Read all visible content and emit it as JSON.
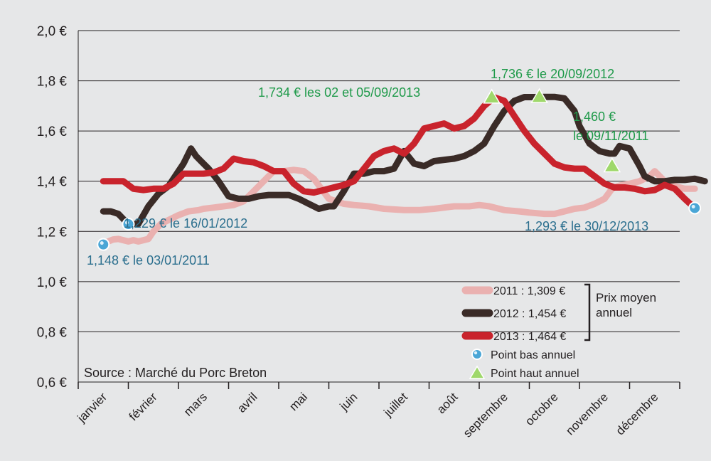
{
  "chart_data": {
    "type": "line",
    "ylim": [
      0.6,
      2.0
    ],
    "y_ticks": [
      "0,6 €",
      "0,8 €",
      "1,0 €",
      "1,2 €",
      "1,4 €",
      "1,6 €",
      "1,8 €",
      "2,0 €"
    ],
    "y_tick_values": [
      0.6,
      0.8,
      1.0,
      1.2,
      1.4,
      1.6,
      1.8,
      2.0
    ],
    "categories": [
      "janvier",
      "février",
      "mars",
      "avril",
      "mai",
      "juin",
      "juillet",
      "août",
      "septembre",
      "octobre",
      "novembre",
      "décembre"
    ],
    "grid": true,
    "source": "Source : Marché du Porc Breton",
    "series": [
      {
        "name": "2011 : 1,309 €",
        "color": "#eab1b0",
        "x": [
          0,
          0.1,
          0.2,
          0.3,
          0.4,
          0.5,
          0.6,
          0.7,
          0.8,
          0.9,
          1.0,
          1.15,
          1.3,
          1.5,
          1.7,
          1.9,
          2.0,
          2.2,
          2.4,
          2.6,
          2.8,
          3.0,
          3.2,
          3.4,
          3.6,
          3.8,
          4.0,
          4.2,
          4.5,
          4.8,
          5.0,
          5.3,
          5.6,
          6.0,
          6.3,
          6.6,
          7.0,
          7.3,
          7.5,
          7.7,
          8.0,
          8.3,
          8.5,
          8.8,
          9.0,
          9.2,
          9.4,
          9.6,
          9.8,
          10.0,
          10.15,
          10.25,
          10.35,
          10.5,
          10.7,
          10.9,
          11.0,
          11.2,
          11.4,
          11.6,
          11.8
        ],
        "values": [
          1.148,
          1.16,
          1.168,
          1.17,
          1.165,
          1.16,
          1.165,
          1.16,
          1.165,
          1.17,
          1.2,
          1.23,
          1.245,
          1.265,
          1.28,
          1.285,
          1.29,
          1.295,
          1.3,
          1.305,
          1.32,
          1.36,
          1.4,
          1.44,
          1.44,
          1.445,
          1.44,
          1.41,
          1.33,
          1.31,
          1.305,
          1.3,
          1.29,
          1.285,
          1.285,
          1.29,
          1.3,
          1.3,
          1.305,
          1.3,
          1.285,
          1.28,
          1.275,
          1.27,
          1.27,
          1.28,
          1.29,
          1.295,
          1.31,
          1.33,
          1.37,
          1.38,
          1.385,
          1.39,
          1.4,
          1.42,
          1.44,
          1.4,
          1.38,
          1.37,
          1.37
        ]
      },
      {
        "name": "2012 : 1,454 €",
        "color": "#3a2b27",
        "x": [
          0,
          0.15,
          0.3,
          0.5,
          0.7,
          0.9,
          1.1,
          1.3,
          1.5,
          1.6,
          1.75,
          1.85,
          1.95,
          2.1,
          2.3,
          2.5,
          2.7,
          2.9,
          3.1,
          3.3,
          3.5,
          3.7,
          3.9,
          4.1,
          4.3,
          4.4,
          4.5,
          4.6,
          4.8,
          5.0,
          5.2,
          5.4,
          5.6,
          5.8,
          6.0,
          6.2,
          6.4,
          6.6,
          6.8,
          7.0,
          7.2,
          7.4,
          7.6,
          7.8,
          8.0,
          8.2,
          8.4,
          8.6,
          8.8,
          9.0,
          9.2,
          9.4,
          9.5,
          9.7,
          9.9,
          10.1,
          10.2,
          10.3,
          10.5,
          10.7,
          10.8,
          11.0,
          11.2,
          11.4,
          11.6,
          11.8,
          12.0
        ],
        "values": [
          1.28,
          1.28,
          1.27,
          1.229,
          1.23,
          1.3,
          1.35,
          1.38,
          1.44,
          1.47,
          1.53,
          1.5,
          1.48,
          1.45,
          1.4,
          1.34,
          1.33,
          1.33,
          1.34,
          1.345,
          1.345,
          1.345,
          1.33,
          1.31,
          1.29,
          1.295,
          1.3,
          1.3,
          1.36,
          1.43,
          1.43,
          1.44,
          1.44,
          1.45,
          1.52,
          1.47,
          1.46,
          1.48,
          1.485,
          1.49,
          1.5,
          1.52,
          1.55,
          1.62,
          1.68,
          1.72,
          1.735,
          1.735,
          1.736,
          1.736,
          1.73,
          1.68,
          1.62,
          1.55,
          1.52,
          1.51,
          1.51,
          1.54,
          1.53,
          1.46,
          1.42,
          1.4,
          1.4,
          1.405,
          1.405,
          1.41,
          1.4
        ]
      },
      {
        "name": "2013 : 1,464 €",
        "color": "#c9232c",
        "x": [
          0,
          0.2,
          0.4,
          0.6,
          0.8,
          1.0,
          1.2,
          1.4,
          1.6,
          1.8,
          2.0,
          2.2,
          2.4,
          2.6,
          2.8,
          3.0,
          3.2,
          3.4,
          3.6,
          3.8,
          4.0,
          4.2,
          4.4,
          4.6,
          4.8,
          5.0,
          5.2,
          5.4,
          5.6,
          5.8,
          6.0,
          6.2,
          6.4,
          6.6,
          6.8,
          7.0,
          7.2,
          7.4,
          7.6,
          7.8,
          8.0,
          8.2,
          8.4,
          8.6,
          8.8,
          9.0,
          9.2,
          9.4,
          9.6,
          9.8,
          10.0,
          10.2,
          10.4,
          10.6,
          10.8,
          11.0,
          11.2,
          11.4,
          11.6,
          11.8
        ],
        "values": [
          1.4,
          1.4,
          1.4,
          1.37,
          1.365,
          1.37,
          1.37,
          1.39,
          1.43,
          1.43,
          1.43,
          1.435,
          1.45,
          1.49,
          1.48,
          1.475,
          1.46,
          1.44,
          1.44,
          1.39,
          1.36,
          1.355,
          1.365,
          1.375,
          1.385,
          1.4,
          1.45,
          1.5,
          1.52,
          1.53,
          1.51,
          1.55,
          1.61,
          1.62,
          1.63,
          1.61,
          1.62,
          1.65,
          1.7,
          1.734,
          1.72,
          1.66,
          1.6,
          1.55,
          1.51,
          1.47,
          1.455,
          1.45,
          1.45,
          1.42,
          1.39,
          1.375,
          1.375,
          1.37,
          1.36,
          1.365,
          1.385,
          1.37,
          1.33,
          1.293
        ]
      }
    ],
    "low_points": [
      {
        "x": 0.0,
        "y": 1.148,
        "label": "1,148 € le 03/01/2011"
      },
      {
        "x": 0.5,
        "y": 1.229,
        "label": "1,229 € le 16/01/2012"
      },
      {
        "x": 11.8,
        "y": 1.293,
        "label": "1,293 € le 30/12/2013"
      }
    ],
    "high_points": [
      {
        "x": 7.75,
        "y": 1.734,
        "label": "1,734 € les 02 et 05/09/2013"
      },
      {
        "x": 8.7,
        "y": 1.736,
        "label": "1,736 € le 20/09/2012"
      },
      {
        "x": 10.15,
        "y": 1.46,
        "label_line1": "1,460 €",
        "label_line2": "le 09/11/2011"
      }
    ],
    "legend": {
      "entries": [
        "2011 : 1,309 €",
        "2012 : 1,454 €",
        "2013 : 1,464 €"
      ],
      "bracket_label_line1": "Prix moyen",
      "bracket_label_line2": "annuel",
      "low_label": "Point bas annuel",
      "high_label": "Point haut annuel"
    },
    "colors": {
      "annotation_low": "#2b6f8e",
      "annotation_high": "#1f9a4a",
      "grid": "#231f20"
    }
  }
}
